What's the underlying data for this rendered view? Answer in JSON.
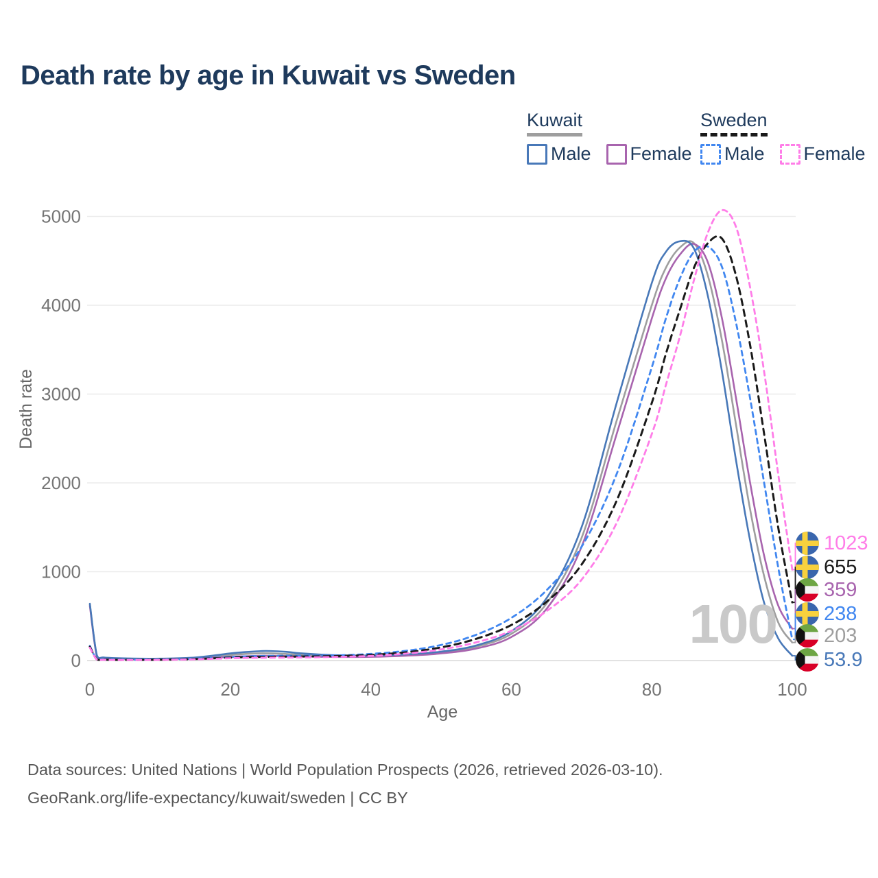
{
  "title": "Death rate by age in Kuwait vs Sweden",
  "legend": {
    "kuwait": {
      "name": "Kuwait",
      "male_label": "Male",
      "female_label": "Female",
      "underline_color": "#9e9e9e",
      "line_style": "solid"
    },
    "sweden": {
      "name": "Sweden",
      "male_label": "Male",
      "female_label": "Female",
      "underline_color": "#1a1a1a",
      "line_style": "dashed"
    }
  },
  "watermark_age": "100",
  "footer": {
    "line1": "Data sources: United Nations | World Population Prospects (2026, retrieved 2026-03-10).",
    "line2": "GeoRank.org/life-expectancy/kuwait/sweden | CC BY"
  },
  "chart_data": {
    "type": "line",
    "title": "Death rate by age in Kuwait vs Sweden",
    "xlabel": "Age",
    "ylabel": "Death rate",
    "xlim": [
      0,
      107
    ],
    "ylim": [
      0,
      5250
    ],
    "x_ticks": [
      0,
      20,
      40,
      60,
      80,
      100
    ],
    "y_ticks": [
      0,
      1000,
      2000,
      3000,
      4000,
      5000
    ],
    "grid": "horizontal",
    "legend_position": "top-right",
    "x": [
      0,
      1,
      2,
      5,
      10,
      15,
      20,
      22,
      25,
      28,
      30,
      35,
      40,
      45,
      50,
      55,
      60,
      65,
      70,
      75,
      80,
      82,
      84,
      86,
      88,
      90,
      92,
      94,
      96,
      98,
      100
    ],
    "series": [
      {
        "name": "Kuwait Male",
        "country": "Kuwait",
        "sex": "Male",
        "color": "#4878b8",
        "dashed": false,
        "flag": "kuwait",
        "end_label": "53.9",
        "values": [
          640,
          60,
          35,
          25,
          22,
          35,
          80,
          95,
          108,
          98,
          82,
          60,
          58,
          70,
          100,
          170,
          330,
          700,
          1500,
          2900,
          4250,
          4600,
          4720,
          4640,
          4100,
          3250,
          2250,
          1350,
          650,
          250,
          53.9
        ]
      },
      {
        "name": "Kuwait Female",
        "country": "Kuwait",
        "sex": "Female",
        "color": "#a864ae",
        "dashed": false,
        "flag": "kuwait",
        "end_label": "359",
        "values": [
          615,
          50,
          30,
          20,
          18,
          25,
          42,
          48,
          54,
          50,
          46,
          40,
          42,
          55,
          80,
          135,
          265,
          580,
          1280,
          2550,
          3850,
          4300,
          4570,
          4690,
          4480,
          3850,
          2950,
          2000,
          1180,
          620,
          359
        ]
      },
      {
        "name": "Kuwait Both sexes",
        "country": "Kuwait",
        "sex": "Both",
        "color": "#9e9e9e",
        "dashed": false,
        "flag": "kuwait",
        "end_label": "203",
        "values": [
          630,
          55,
          32,
          22,
          20,
          30,
          62,
          74,
          82,
          74,
          64,
          50,
          50,
          62,
          90,
          155,
          300,
          640,
          1380,
          2700,
          4000,
          4420,
          4650,
          4700,
          4330,
          3600,
          2650,
          1700,
          950,
          430,
          203
        ]
      },
      {
        "name": "Sweden Male",
        "country": "Sweden",
        "sex": "Male",
        "color": "#4187f0",
        "dashed": true,
        "flag": "sweden",
        "end_label": "238",
        "values": [
          165,
          15,
          10,
          8,
          10,
          20,
          40,
          46,
          52,
          54,
          54,
          58,
          75,
          110,
          175,
          290,
          480,
          790,
          1280,
          2100,
          3300,
          3850,
          4300,
          4600,
          4660,
          4430,
          3800,
          2950,
          2000,
          1050,
          238
        ]
      },
      {
        "name": "Sweden Female",
        "country": "Sweden",
        "sex": "Female",
        "color": "#ff7de8",
        "dashed": true,
        "flag": "sweden",
        "end_label": "1023",
        "values": [
          145,
          11,
          8,
          6,
          8,
          14,
          26,
          29,
          32,
          34,
          35,
          41,
          52,
          78,
          125,
          205,
          335,
          555,
          910,
          1550,
          2550,
          3100,
          3650,
          4280,
          4820,
          5070,
          4880,
          4200,
          3250,
          2100,
          1023
        ]
      },
      {
        "name": "Sweden Both sexes",
        "country": "Sweden",
        "sex": "Both",
        "color": "#1a1a1a",
        "dashed": true,
        "flag": "sweden",
        "end_label": "655",
        "values": [
          155,
          13,
          9,
          7,
          9,
          17,
          33,
          38,
          42,
          44,
          45,
          50,
          63,
          93,
          148,
          245,
          400,
          660,
          1080,
          1800,
          2900,
          3450,
          3950,
          4420,
          4700,
          4750,
          4330,
          3550,
          2550,
          1500,
          655
        ]
      }
    ],
    "colors": {
      "kuwait_male": "#4878b8",
      "kuwait_female": "#a864ae",
      "kuwait_both": "#9e9e9e",
      "sweden_male": "#4187f0",
      "sweden_female": "#ff7de8",
      "sweden_both": "#1a1a1a",
      "title": "#1e3a5c",
      "axis_text": "#757575",
      "gridline": "#ebebeb",
      "watermark": "#c9c9c9"
    }
  }
}
